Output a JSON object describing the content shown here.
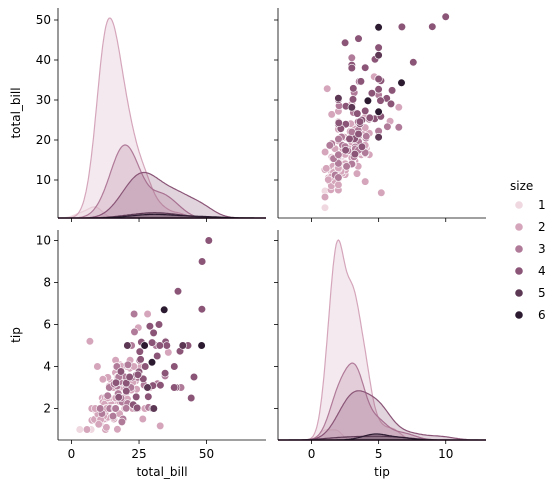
{
  "chart_data": {
    "type": "scatter",
    "kind": "pairplot",
    "variables": [
      "total_bill",
      "tip"
    ],
    "hue": "size",
    "legend": {
      "title": "size",
      "placement": "right",
      "entries": [
        {
          "label": "1",
          "color": "#efd8e0"
        },
        {
          "label": "2",
          "color": "#d5a6bb"
        },
        {
          "label": "3",
          "color": "#b07a99"
        },
        {
          "label": "4",
          "color": "#8a5577"
        },
        {
          "label": "5",
          "color": "#5d3854"
        },
        {
          "label": "6",
          "color": "#2b1a30"
        }
      ]
    },
    "axes": {
      "total_bill": {
        "label": "total_bill",
        "lim": [
          -5,
          72
        ],
        "ticks": [
          0,
          25,
          50
        ]
      },
      "tip": {
        "label": "tip",
        "lim": [
          0.5,
          10.5
        ],
        "ticks": [
          2,
          4,
          6,
          8,
          10
        ]
      },
      "total_bill_y": {
        "label": "total_bill",
        "lim": [
          0.5,
          53
        ],
        "ticks": [
          10,
          20,
          30,
          40,
          50
        ]
      },
      "tip_x": {
        "label": "tip",
        "lim": [
          -2.5,
          13
        ],
        "ticks": [
          0,
          5,
          10
        ]
      }
    },
    "grid": false,
    "series": [
      {
        "name": "1",
        "points": [
          [
            3.07,
            1.0
          ],
          [
            10.07,
            1.83
          ],
          [
            7.25,
            1.0
          ],
          [
            8.58,
            1.92
          ]
        ]
      },
      {
        "name": "2",
        "points": [
          [
            16.99,
            1.01
          ],
          [
            10.34,
            1.66
          ],
          [
            23.68,
            3.31
          ],
          [
            14.78,
            3.23
          ],
          [
            10.27,
            1.71
          ],
          [
            15.04,
            1.96
          ],
          [
            14.83,
            3.02
          ],
          [
            21.58,
            3.92
          ],
          [
            10.33,
            1.67
          ],
          [
            16.29,
            3.71
          ],
          [
            16.97,
            3.5
          ],
          [
            20.65,
            3.35
          ],
          [
            17.92,
            4.08
          ],
          [
            20.29,
            2.75
          ],
          [
            15.77,
            2.23
          ],
          [
            19.82,
            3.18
          ],
          [
            17.81,
            2.34
          ],
          [
            13.37,
            2.0
          ],
          [
            12.69,
            2.0
          ],
          [
            21.7,
            4.3
          ],
          [
            19.65,
            3.0
          ],
          [
            9.55,
            1.45
          ],
          [
            15.06,
            3.0
          ],
          [
            20.69,
            2.45
          ],
          [
            13.42,
            3.48
          ],
          [
            12.46,
            1.5
          ],
          [
            11.35,
            2.5
          ],
          [
            15.38,
            3.0
          ],
          [
            12.03,
            1.5
          ],
          [
            21.01,
            3.0
          ],
          [
            12.02,
            1.97
          ],
          [
            17.07,
            3.0
          ],
          [
            14.73,
            2.2
          ],
          [
            10.51,
            1.25
          ],
          [
            17.92,
            3.08
          ],
          [
            27.2,
            4.0
          ],
          [
            22.76,
            3.0
          ],
          [
            13.81,
            2.0
          ],
          [
            11.02,
            1.98
          ],
          [
            18.29,
            3.76
          ],
          [
            17.59,
            2.64
          ],
          [
            13.94,
            3.06
          ],
          [
            9.68,
            1.32
          ],
          [
            15.98,
            2.03
          ],
          [
            13.03,
            2.0
          ],
          [
            18.28,
            4.0
          ],
          [
            24.71,
            5.85
          ],
          [
            21.16,
            3.0
          ],
          [
            28.97,
            3.0
          ],
          [
            22.49,
            3.5
          ],
          [
            5.75,
            1.0
          ],
          [
            16.32,
            4.3
          ],
          [
            22.75,
            3.25
          ],
          [
            40.17,
            4.73
          ],
          [
            12.6,
            1.0
          ],
          [
            26.41,
            1.5
          ],
          [
            15.48,
            2.02
          ],
          [
            16.58,
            4.0
          ],
          [
            7.56,
            1.44
          ],
          [
            10.34,
            2.0
          ],
          [
            13.0,
            2.0
          ],
          [
            16.4,
            2.5
          ],
          [
            20.53,
            4.0
          ],
          [
            16.47,
            3.23
          ],
          [
            26.59,
            3.41
          ],
          [
            20.9,
            3.5
          ],
          [
            18.15,
            3.5
          ],
          [
            23.1,
            4.0
          ],
          [
            11.69,
            2.31
          ],
          [
            13.42,
            1.58
          ],
          [
            14.26,
            2.5
          ],
          [
            15.95,
            2.0
          ],
          [
            12.48,
            2.52
          ],
          [
            29.8,
            4.2
          ],
          [
            8.52,
            1.48
          ],
          [
            14.52,
            2.0
          ],
          [
            11.38,
            2.0
          ],
          [
            10.65,
            1.5
          ],
          [
            12.43,
            1.8
          ],
          [
            24.08,
            2.92
          ],
          [
            11.87,
            1.63
          ],
          [
            9.78,
            1.73
          ],
          [
            7.51,
            2.0
          ],
          [
            14.07,
            2.5
          ],
          [
            13.13,
            2.0
          ],
          [
            17.26,
            2.74
          ],
          [
            24.55,
            2.0
          ],
          [
            19.77,
            2.0
          ],
          [
            15.69,
            1.5
          ],
          [
            11.61,
            3.39
          ],
          [
            10.77,
            1.47
          ],
          [
            15.53,
            3.0
          ],
          [
            10.07,
            1.25
          ],
          [
            12.6,
            1.0
          ],
          [
            32.83,
            1.17
          ],
          [
            35.83,
            4.67
          ],
          [
            27.18,
            2.0
          ],
          [
            22.67,
            2.0
          ],
          [
            17.82,
            1.75
          ],
          [
            18.78,
            3.0
          ],
          [
            8.77,
            2.0
          ],
          [
            15.42,
            1.57
          ],
          [
            14.48,
            2.0
          ],
          [
            25.71,
            4.0
          ],
          [
            17.31,
            3.5
          ],
          [
            22.12,
            2.88
          ],
          [
            32.4,
            6.0
          ],
          [
            28.17,
            6.5
          ],
          [
            12.9,
            1.1
          ],
          [
            18.24,
            3.25
          ],
          [
            9.6,
            4.0
          ],
          [
            19.44,
            3.0
          ],
          [
            25.89,
            5.16
          ],
          [
            13.27,
            2.5
          ],
          [
            28.44,
            2.56
          ],
          [
            12.16,
            2.2
          ],
          [
            13.51,
            2.0
          ],
          [
            18.71,
            4.0
          ],
          [
            12.74,
            2.01
          ],
          [
            13.0,
            2.0
          ],
          [
            16.4,
            2.5
          ],
          [
            6.8,
            5.2
          ]
        ]
      },
      {
        "name": "3",
        "points": [
          [
            21.01,
            3.5
          ],
          [
            24.59,
            3.61
          ],
          [
            20.08,
            3.15
          ],
          [
            19.49,
            3.51
          ],
          [
            14.0,
            3.0
          ],
          [
            38.01,
            3.0
          ],
          [
            26.88,
            3.12
          ],
          [
            26.86,
            3.14
          ],
          [
            16.93,
            3.07
          ],
          [
            14.15,
            2.0
          ],
          [
            16.0,
            2.0
          ],
          [
            18.69,
            2.31
          ],
          [
            31.27,
            5.0
          ],
          [
            21.5,
            3.5
          ],
          [
            15.36,
            1.64
          ],
          [
            20.49,
            4.06
          ],
          [
            25.21,
            4.29
          ],
          [
            18.35,
            2.5
          ],
          [
            16.31,
            2.0
          ],
          [
            17.29,
            2.71
          ],
          [
            20.76,
            2.24
          ],
          [
            22.82,
            2.18
          ],
          [
            24.52,
            3.48
          ],
          [
            28.55,
            2.05
          ],
          [
            34.3,
            6.7
          ],
          [
            35.26,
            5.0
          ],
          [
            23.33,
            5.65
          ],
          [
            18.26,
            3.25
          ],
          [
            19.08,
            1.5
          ],
          [
            15.81,
            3.16
          ],
          [
            16.82,
            4.0
          ],
          [
            20.23,
            2.01
          ],
          [
            17.78,
            3.27
          ],
          [
            20.92,
            4.08
          ],
          [
            13.39,
            2.61
          ],
          [
            26.88,
            3.12
          ],
          [
            31.85,
            3.18
          ],
          [
            34.63,
            3.55
          ],
          [
            23.17,
            6.5
          ],
          [
            40.55,
            3.0
          ],
          [
            20.45,
            3.0
          ],
          [
            22.42,
            3.48
          ],
          [
            24.27,
            2.03
          ],
          [
            32.68,
            5.0
          ],
          [
            18.64,
            1.36
          ],
          [
            11.24,
            1.76
          ],
          [
            22.23,
            5.0
          ],
          [
            10.63,
            2.0
          ],
          [
            30.46,
            2.0
          ],
          [
            17.47,
            3.5
          ],
          [
            39.42,
            7.58
          ],
          [
            34.81,
            5.2
          ],
          [
            22.0,
            3.0
          ]
        ]
      },
      {
        "name": "4",
        "points": [
          [
            25.29,
            4.71
          ],
          [
            24.06,
            3.6
          ],
          [
            39.42,
            7.58
          ],
          [
            48.27,
            6.73
          ],
          [
            20.29,
            3.21
          ],
          [
            18.29,
            3.76
          ],
          [
            30.4,
            5.6
          ],
          [
            34.83,
            5.17
          ],
          [
            44.3,
            2.5
          ],
          [
            45.35,
            3.5
          ],
          [
            25.56,
            4.34
          ],
          [
            32.9,
            3.11
          ],
          [
            38.73,
            3.0
          ],
          [
            50.81,
            10.0
          ],
          [
            48.33,
            9.0
          ],
          [
            28.15,
            3.0
          ],
          [
            41.19,
            5.0
          ],
          [
            25.0,
            3.75
          ],
          [
            20.27,
            2.83
          ],
          [
            31.71,
            4.5
          ],
          [
            43.11,
            5.0
          ],
          [
            30.06,
            2.0
          ],
          [
            23.95,
            2.55
          ],
          [
            40.17,
            4.73
          ],
          [
            26.59,
            3.41
          ],
          [
            35.26,
            5.0
          ],
          [
            29.85,
            5.14
          ],
          [
            48.17,
            5.0
          ],
          [
            34.65,
            3.68
          ],
          [
            27.28,
            4.0
          ],
          [
            38.07,
            4.0
          ],
          [
            24.01,
            2.0
          ],
          [
            22.82,
            2.18
          ],
          [
            29.03,
            5.92
          ],
          [
            30.14,
            3.09
          ],
          [
            24.27,
            2.03
          ],
          [
            25.89,
            5.16
          ],
          [
            17.46,
            2.54
          ],
          [
            16.47,
            3.23
          ],
          [
            32.68,
            5.0
          ],
          [
            28.44,
            2.56
          ],
          [
            38.01,
            3.0
          ],
          [
            32.4,
            6.0
          ],
          [
            20.69,
            5.0
          ],
          [
            24.59,
            3.61
          ],
          [
            21.5,
            3.5
          ],
          [
            39.42,
            7.58
          ]
        ]
      },
      {
        "name": "5",
        "points": [
          [
            20.69,
            5.0
          ],
          [
            30.46,
            2.0
          ],
          [
            28.15,
            3.0
          ],
          [
            34.3,
            6.7
          ],
          [
            41.19,
            5.0
          ]
        ]
      },
      {
        "name": "6",
        "points": [
          [
            48.17,
            5.0
          ],
          [
            29.8,
            4.2
          ],
          [
            34.3,
            6.7
          ],
          [
            27.05,
            5.0
          ]
        ]
      }
    ]
  }
}
